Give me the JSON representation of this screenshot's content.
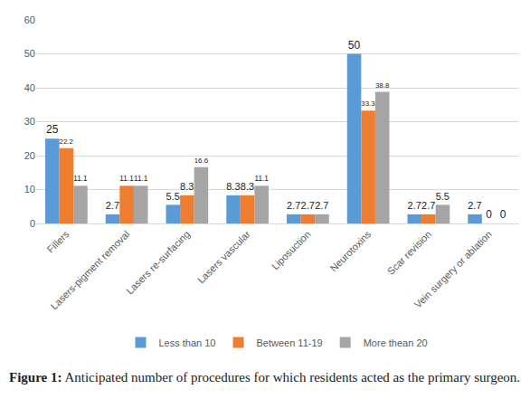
{
  "chart_data": {
    "type": "bar",
    "title": "Figure 1: Anticipated number of procedures for which residents acted as the primary surgeon.",
    "categories": [
      "Fillers",
      "Lasers-pigment removal",
      "Lasers re-surfacing",
      "Lasers vascular",
      "Liposuction",
      "Neurotoxins",
      "Scar revision",
      "Vein surgery or ablation"
    ],
    "series": [
      {
        "name": "Less than 10",
        "color": "#5B9BD5",
        "values": [
          25,
          2.7,
          5.5,
          8.3,
          2.7,
          50,
          2.7,
          2.7
        ]
      },
      {
        "name": "Between 11-19",
        "color": "#ED7D31",
        "values": [
          22.2,
          11.1,
          8.3,
          8.3,
          2.7,
          33.3,
          2.7,
          0
        ]
      },
      {
        "name": "More thean 20",
        "color": "#A5A5A5",
        "values": [
          11.1,
          11.1,
          16.6,
          11.1,
          2.7,
          38.8,
          5.5,
          0
        ]
      }
    ],
    "ylim": [
      0,
      60
    ],
    "yticks": [
      0,
      10,
      20,
      30,
      40,
      50,
      60
    ],
    "grid": true,
    "legend": "bottom",
    "data_labels": true
  }
}
